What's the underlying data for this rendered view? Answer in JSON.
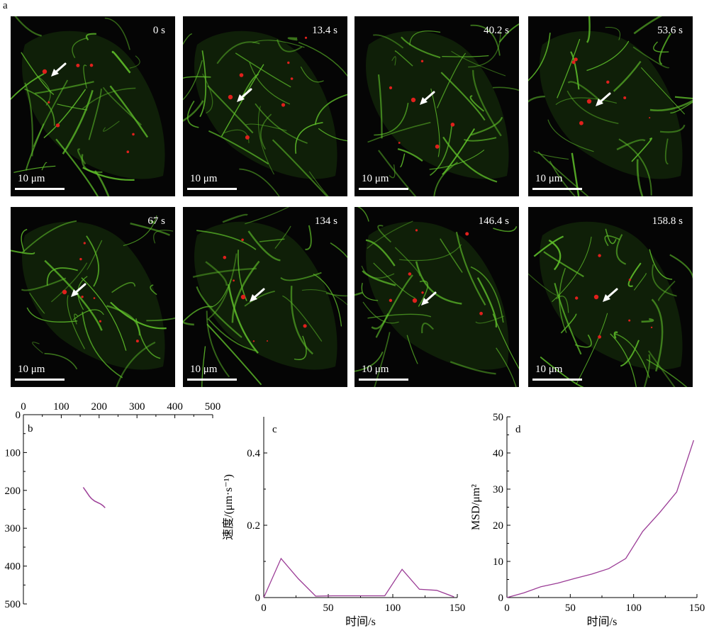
{
  "figure": {
    "panel_a": "a",
    "panel_b": "b",
    "panel_c": "c",
    "panel_d": "d",
    "scale_bar_label": "10 μm",
    "frames": [
      "0 s",
      "13.4 s",
      "40.2 s",
      "53.6 s",
      "67 s",
      "134 s",
      "146.4 s",
      "158.8 s"
    ]
  },
  "colors": {
    "filament": "#5fbf2a",
    "particle": "#e0201c",
    "trace": "#9b3c96",
    "background": "#050505"
  },
  "chart_data": [
    {
      "type": "line",
      "panel": "b",
      "xlim": [
        0,
        500
      ],
      "ylim": [
        500,
        0
      ],
      "xticks": [
        "0",
        "100",
        "200",
        "300",
        "400",
        "500"
      ],
      "yticks": [
        "0",
        "100",
        "200",
        "300",
        "400",
        "500"
      ],
      "x": [
        158,
        166,
        174,
        180,
        188,
        196,
        204,
        210,
        216
      ],
      "y": [
        192,
        203,
        215,
        222,
        228,
        232,
        236,
        240,
        246
      ]
    },
    {
      "type": "line",
      "panel": "c",
      "xlabel": "时间/s",
      "ylabel": "速度/(μm·s⁻¹)",
      "xlim": [
        0,
        150
      ],
      "ylim": [
        0,
        0.5
      ],
      "xticks": [
        "0",
        "50",
        "100",
        "150"
      ],
      "yticks": [
        "0",
        "0.2",
        "0.4"
      ],
      "x": [
        0,
        13.4,
        26.8,
        40.2,
        53.6,
        67,
        80.4,
        93.8,
        107.2,
        120.6,
        134,
        147.4
      ],
      "y": [
        0,
        0.108,
        0.052,
        0.004,
        0.005,
        0.005,
        0.005,
        0.005,
        0.078,
        0.023,
        0.02,
        0.002
      ]
    },
    {
      "type": "line",
      "panel": "d",
      "xlabel": "时间/s",
      "ylabel": "MSD/μm²",
      "xlim": [
        0,
        150
      ],
      "ylim": [
        0,
        50
      ],
      "xticks": [
        "0",
        "50",
        "100",
        "150"
      ],
      "yticks": [
        "0",
        "10",
        "20",
        "30",
        "40",
        "50"
      ],
      "x": [
        0,
        13.4,
        26.8,
        40.2,
        53.6,
        67,
        80.4,
        93.8,
        107.2,
        120.6,
        134,
        147.4
      ],
      "y": [
        0,
        1.3,
        3.0,
        4.0,
        5.3,
        6.5,
        8.0,
        10.8,
        18.3,
        23.5,
        29.2,
        43.5
      ]
    }
  ]
}
